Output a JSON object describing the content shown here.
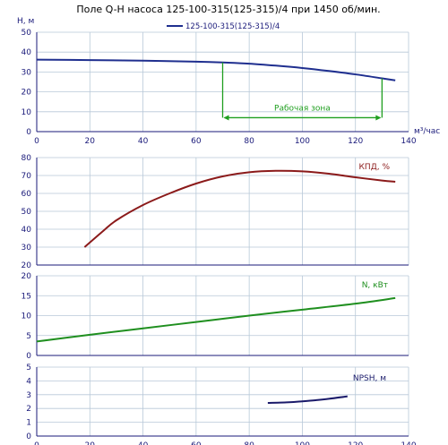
{
  "colors": {
    "head": "#1f2f8f",
    "efficiency": "#8b1a1a",
    "power": "#1f8f1f",
    "npsh": "#1a1a6a",
    "zone": "#1f9f1f",
    "grid": "#b8c8d8",
    "axis": "#1a1a7a"
  },
  "title": "Поле Q-H насоса 125-100-315(125-315)/4 при 1450 об/мин.",
  "chart_data": [
    {
      "type": "line",
      "xlabel": "м³/час",
      "ylabel": "Н, м",
      "xlim": [
        0,
        140
      ],
      "ylim": [
        0,
        50
      ],
      "x_ticks": [
        "0",
        "20",
        "40",
        "60",
        "80",
        "100",
        "120",
        "140"
      ],
      "y_ticks": [
        "0",
        "10",
        "20",
        "30",
        "40",
        "50"
      ],
      "legend": "125-100-315(125-315)/4",
      "series": [
        {
          "name": "125-100-315(125-315)/4",
          "x": [
            0,
            20,
            40,
            60,
            70,
            80,
            90,
            100,
            110,
            120,
            130,
            135
          ],
          "y": [
            36.2,
            36,
            35.7,
            35.2,
            34.8,
            34.2,
            33.2,
            32,
            30.5,
            28.8,
            26.8,
            25.8
          ]
        }
      ],
      "annotations": [
        {
          "text": "Рабочая зона",
          "x_range": [
            70,
            130
          ]
        }
      ]
    },
    {
      "type": "line",
      "xlim": [
        0,
        140
      ],
      "ylim": [
        20,
        80
      ],
      "y_ticks": [
        "20",
        "30",
        "40",
        "50",
        "60",
        "70",
        "80"
      ],
      "series": [
        {
          "name": "КПД, %",
          "x": [
            18,
            25,
            30,
            40,
            50,
            60,
            70,
            80,
            90,
            100,
            110,
            120,
            130,
            135
          ],
          "y": [
            30,
            39,
            45,
            53.5,
            60,
            65.5,
            69.5,
            71.8,
            72.6,
            72.3,
            71,
            69,
            67.2,
            66.5
          ]
        }
      ]
    },
    {
      "type": "line",
      "xlim": [
        0,
        140
      ],
      "ylim": [
        0,
        20
      ],
      "y_ticks": [
        "0",
        "5",
        "10",
        "15",
        "20"
      ],
      "series": [
        {
          "name": "N, кВт",
          "x": [
            0,
            20,
            40,
            60,
            80,
            100,
            120,
            135
          ],
          "y": [
            3.5,
            5.2,
            6.8,
            8.4,
            10.0,
            11.5,
            13.0,
            14.4
          ]
        }
      ]
    },
    {
      "type": "line",
      "xlabel": "",
      "xlim": [
        0,
        140
      ],
      "ylim": [
        0,
        5
      ],
      "x_ticks": [
        "0",
        "20",
        "40",
        "60",
        "80",
        "100",
        "120",
        "140"
      ],
      "y_ticks": [
        "0",
        "1",
        "2",
        "3",
        "4",
        "5"
      ],
      "series": [
        {
          "name": "NPSH, м",
          "x": [
            87,
            95,
            100,
            105,
            110,
            117
          ],
          "y": [
            2.4,
            2.45,
            2.52,
            2.6,
            2.7,
            2.88
          ]
        }
      ]
    }
  ]
}
